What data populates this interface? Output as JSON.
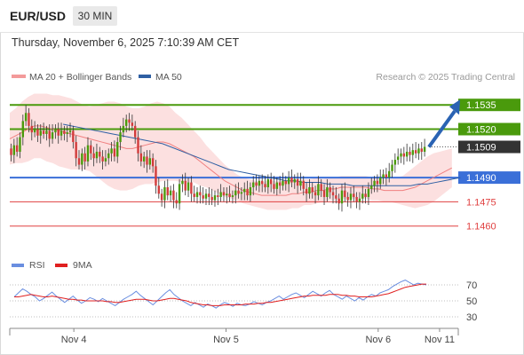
{
  "header": {
    "symbol": "EUR/USD",
    "timeframe": "30 MIN"
  },
  "timestamp": "Thursday, November 6, 2025 7:10:39 AM CET",
  "legend": {
    "bb": "MA 20 + Bollinger Bands",
    "ma50": "MA 50",
    "rsi": "RSI",
    "ma9": "9MA"
  },
  "credit": "Research © 2025 Trading Central",
  "colors": {
    "bb_band": "#f9c6c6",
    "bb_line": "#f08080",
    "ma50": "#2e5fa3",
    "green": "#4a9a0c",
    "blue": "#3a6fd8",
    "red": "#e04040",
    "candle_up": "#4a9a0c",
    "candle_down": "#d23c3c",
    "rsi": "#6a8ee0",
    "rsi_ma": "#e02020",
    "arrow": "#2a63b3"
  },
  "chart_data": [
    {
      "type": "candlestick",
      "ylim": [
        1.1445,
        1.1545
      ],
      "xlim": [
        0,
        168
      ],
      "x_ticks": [
        {
          "x": 24,
          "label": "Nov 4"
        },
        {
          "x": 81,
          "label": "Nov 5"
        },
        {
          "x": 138,
          "label": "Nov 6"
        },
        {
          "x": 161,
          "label": "Nov 11"
        }
      ],
      "levels": [
        {
          "value": 1.1535,
          "label": "1.1535",
          "style": "green"
        },
        {
          "value": 1.152,
          "label": "1.1520",
          "style": "green"
        },
        {
          "value": 1.1509,
          "label": "1.1509",
          "style": "current"
        },
        {
          "value": 1.149,
          "label": "1.1490",
          "style": "blue"
        },
        {
          "value": 1.1475,
          "label": "1.1475",
          "style": "red"
        },
        {
          "value": 1.146,
          "label": "1.1460",
          "style": "red"
        }
      ],
      "close_start": 1.1508,
      "closes": [
        1.1504,
        1.151,
        1.1506,
        1.1515,
        1.1525,
        1.153,
        1.1522,
        1.1518,
        1.152,
        1.1516,
        1.1519,
        1.1517,
        1.1519,
        1.1514,
        1.1518,
        1.152,
        1.1516,
        1.1519,
        1.1517,
        1.1518,
        1.1519,
        1.1512,
        1.1502,
        1.1498,
        1.1505,
        1.15,
        1.151,
        1.1505,
        1.1502,
        1.1506,
        1.1503,
        1.15,
        1.1502,
        1.1505,
        1.1508,
        1.1503,
        1.1512,
        1.1518,
        1.1522,
        1.1526,
        1.1524,
        1.1522,
        1.1515,
        1.1505,
        1.15,
        1.1503,
        1.1498,
        1.1502,
        1.1497,
        1.1485,
        1.148,
        1.1476,
        1.1484,
        1.1479,
        1.1482,
        1.1476,
        1.1474,
        1.1486,
        1.1488,
        1.1482,
        1.1487,
        1.148,
        1.1478,
        1.1481,
        1.1479,
        1.1477,
        1.148,
        1.1478,
        1.1476,
        1.1479,
        1.1478,
        1.1481,
        1.1479,
        1.148,
        1.1478,
        1.1479,
        1.1482,
        1.148,
        1.1481,
        1.1483,
        1.1479,
        1.1484,
        1.1487,
        1.1485,
        1.1488,
        1.1486,
        1.1484,
        1.1489,
        1.1486,
        1.1483,
        1.1487,
        1.1485,
        1.1488,
        1.1486,
        1.149,
        1.1487,
        1.1489,
        1.1485,
        1.1488,
        1.1483,
        1.148,
        1.1484,
        1.1481,
        1.1479,
        1.1486,
        1.1482,
        1.1478,
        1.1484,
        1.1481,
        1.1479,
        1.1477,
        1.1474,
        1.1482,
        1.1478,
        1.1476,
        1.148,
        1.1478,
        1.1475,
        1.1477,
        1.148,
        1.1478,
        1.1483,
        1.1485,
        1.1488,
        1.1486,
        1.149,
        1.1492,
        1.149,
        1.1494,
        1.1498,
        1.1501,
        1.1503,
        1.1505,
        1.1503,
        1.1506,
        1.1504,
        1.1507,
        1.1505,
        1.1508,
        1.1506,
        1.1509
      ],
      "ma20": [
        1.1514,
        1.1516,
        1.1518,
        1.152,
        1.1522,
        1.1522,
        1.1521,
        1.152,
        1.1519,
        1.1518,
        1.1517,
        1.1516,
        1.1515,
        1.1514,
        1.1513,
        1.1512,
        1.1511,
        1.151,
        1.1509,
        1.1508,
        1.1508,
        1.1509,
        1.151,
        1.1511,
        1.1512,
        1.1512,
        1.1511,
        1.1509,
        1.1507,
        1.1505,
        1.1503,
        1.15,
        1.1497,
        1.1494,
        1.1491,
        1.1488,
        1.1486,
        1.1484,
        1.1482,
        1.1481,
        1.148,
        1.1479,
        1.1479,
        1.1479,
        1.1479,
        1.1479,
        1.148,
        1.148,
        1.1481,
        1.1481,
        1.1482,
        1.1482,
        1.1483,
        1.1483,
        1.1484,
        1.1484,
        1.1484,
        1.1484,
        1.1484,
        1.1483,
        1.1483,
        1.1482,
        1.1482,
        1.1482,
        1.1482,
        1.1483,
        1.1484,
        1.1486,
        1.1488,
        1.149,
        1.1492,
        1.1494,
        1.1496
      ],
      "ma20_x0": 0,
      "ma20_step": 2.3,
      "bb_upper_offset": [
        0.0016,
        0.0017,
        0.0019,
        0.002,
        0.002,
        0.002,
        0.0021,
        0.0021,
        0.0022,
        0.0022,
        0.0022,
        0.0021,
        0.002,
        0.002,
        0.0022,
        0.0024,
        0.0026,
        0.0027,
        0.0027,
        0.0026,
        0.0025,
        0.0024,
        0.0024,
        0.0025,
        0.0025,
        0.0024,
        0.0023,
        0.0021,
        0.002,
        0.0018,
        0.0016,
        0.0015,
        0.0013,
        0.0012,
        0.0011,
        0.001,
        0.0009,
        0.0008,
        0.0008,
        0.0008,
        0.0008,
        0.0008,
        0.0009,
        0.0009,
        0.0009,
        0.0009,
        0.0009,
        0.0009,
        0.0008,
        0.0008,
        0.0008,
        0.0007,
        0.0007,
        0.0007,
        0.0007,
        0.0007,
        0.0007,
        0.0007,
        0.0007,
        0.0007,
        0.0007,
        0.0007,
        0.0007,
        0.0008,
        0.0009,
        0.0011,
        0.0013,
        0.0014,
        0.0015,
        0.0015,
        0.0014,
        0.0013,
        0.0012
      ],
      "ma50": [
        1.1523,
        1.1522,
        1.1521,
        1.152,
        1.1519,
        1.1518,
        1.1517,
        1.1516,
        1.1515,
        1.1514,
        1.1513,
        1.1512,
        1.1511,
        1.1509,
        1.1507,
        1.1505,
        1.1503,
        1.1501,
        1.1499,
        1.1497,
        1.1495,
        1.1494,
        1.1493,
        1.1492,
        1.1491,
        1.149,
        1.1489,
        1.1488,
        1.1488,
        1.1487,
        1.1487,
        1.1487,
        1.1486,
        1.1486,
        1.1486,
        1.1485,
        1.1485,
        1.1485,
        1.1485,
        1.1485,
        1.1485,
        1.1485,
        1.1485,
        1.1486,
        1.1486,
        1.1487,
        1.1488,
        1.1489,
        1.149
      ],
      "ma50_x0": 20,
      "ma50_step": 3.1,
      "arrow_from": [
        157,
        1.1509
      ],
      "arrow_to": [
        168,
        1.1535
      ]
    },
    {
      "type": "line",
      "name": "RSI",
      "ylim": [
        20,
        80
      ],
      "y_ticks": [
        70,
        50,
        30
      ],
      "rsi": [
        55,
        60,
        65,
        62,
        58,
        55,
        50,
        53,
        57,
        61,
        56,
        52,
        48,
        52,
        56,
        51,
        47,
        50,
        54,
        52,
        49,
        53,
        50,
        47,
        44,
        48,
        52,
        55,
        58,
        62,
        57,
        53,
        49,
        45,
        50,
        55,
        60,
        64,
        58,
        54,
        50,
        47,
        44,
        48,
        45,
        42,
        46,
        44,
        41,
        45,
        48,
        46,
        43,
        47,
        45,
        44,
        46,
        49,
        47,
        45,
        48,
        50,
        53,
        56,
        52,
        55,
        58,
        60,
        57,
        54,
        58,
        62,
        59,
        56,
        60,
        63,
        58,
        55,
        52,
        56,
        53,
        50,
        54,
        51,
        55,
        58,
        56,
        60,
        62,
        64,
        68,
        71,
        74,
        76,
        73,
        70,
        72,
        71,
        70
      ],
      "ma9": [
        55,
        55,
        56,
        57,
        58,
        57,
        56,
        55,
        55,
        56,
        55,
        54,
        53,
        52,
        52,
        51,
        51,
        50,
        50,
        50,
        50,
        50,
        49,
        49,
        48,
        48,
        49,
        50,
        51,
        52,
        52,
        52,
        51,
        50,
        50,
        51,
        52,
        53,
        53,
        52,
        51,
        50,
        48,
        47,
        46,
        45,
        45,
        44,
        44,
        44,
        45,
        45,
        45,
        45,
        45,
        46,
        46,
        46,
        47,
        47,
        48,
        48,
        49,
        50,
        51,
        52,
        53,
        54,
        55,
        56,
        56,
        57,
        57,
        57,
        57,
        58,
        58,
        58,
        57,
        57,
        56,
        56,
        55,
        55,
        55,
        55,
        56,
        57,
        58,
        59,
        61,
        63,
        65,
        67,
        68,
        69,
        70,
        71,
        71
      ]
    }
  ]
}
